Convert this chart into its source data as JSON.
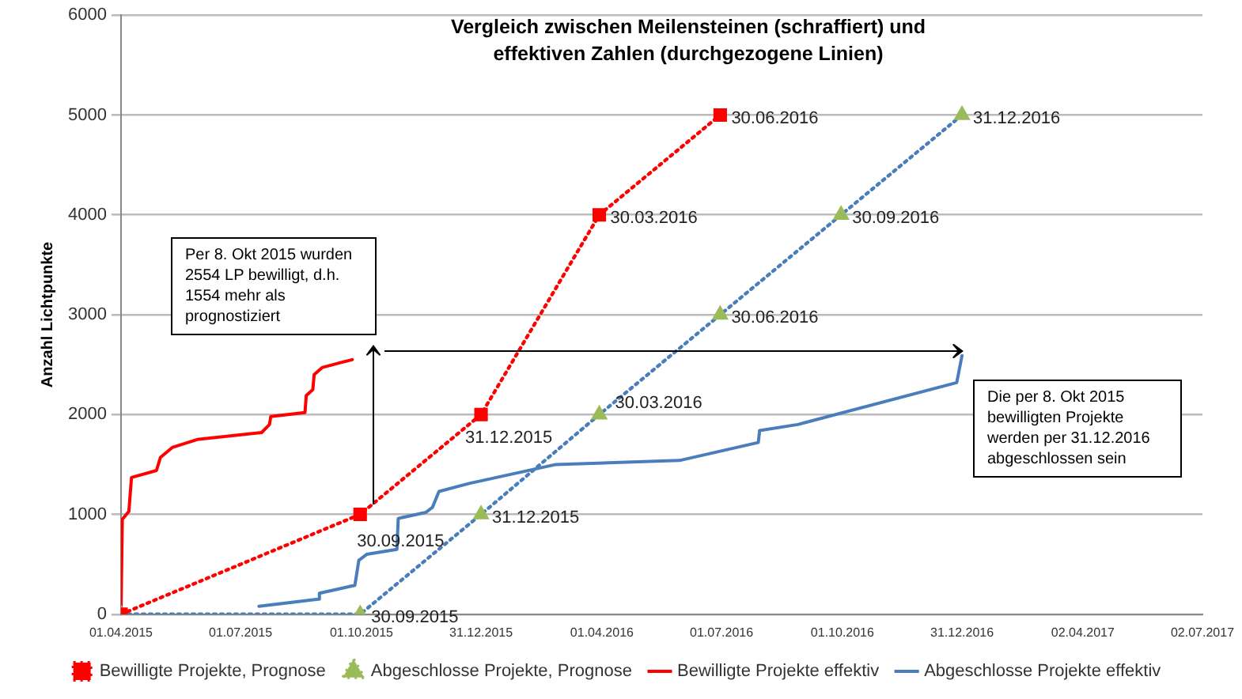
{
  "chart_data": {
    "type": "line",
    "title": "Vergleich zwischen Meilensteinen (schraffiert) und\neffektiven Zahlen (durchgezogene Linien)",
    "ylabel": "Anzahl Lichtpunkte",
    "xlim": [
      "2015-04-01",
      "2017-07-02"
    ],
    "xticks": [
      {
        "value": "2015-04-01",
        "label": "01.04.2015"
      },
      {
        "value": "2015-07-01",
        "label": "01.07.2015"
      },
      {
        "value": "2015-10-01",
        "label": "01.10.2015"
      },
      {
        "value": "2015-12-31",
        "label": "31.12.2015"
      },
      {
        "value": "2016-04-01",
        "label": "01.04.2016"
      },
      {
        "value": "2016-07-01",
        "label": "01.07.2016"
      },
      {
        "value": "2016-10-01",
        "label": "01.10.2016"
      },
      {
        "value": "2016-12-31",
        "label": "31.12.2016"
      },
      {
        "value": "2017-04-02",
        "label": "02.04.2017"
      },
      {
        "value": "2017-07-02",
        "label": "02.07.2017"
      }
    ],
    "ylim": [
      0,
      6000
    ],
    "yticks": [
      0,
      1000,
      2000,
      3000,
      4000,
      5000,
      6000
    ],
    "grid": "y",
    "legend": "bottom",
    "annotations": [
      "Per 8. Okt 2015 wurden 2554 LP bewilligt, d.h. 1554 mehr als prognostiziert",
      "Die per 8. Okt 2015 bewilligten Projekte werden per 31.12.2016 abgeschlossen sein"
    ],
    "series": [
      {
        "name": "Bewilligte Projekte, Prognose",
        "color": "#ff0000",
        "line_style": "dotted",
        "marker": "square",
        "x": [
          "2015-04-01",
          "2015-09-30",
          "2015-12-31",
          "2016-03-30",
          "2016-06-30"
        ],
        "values": [
          0,
          1000,
          2000,
          4000,
          5000
        ],
        "value_labels": [
          null,
          "30.09.2015",
          "31.12.2015",
          "30.03.2016",
          "30.06.2016"
        ]
      },
      {
        "name": "Abgeschlosse Projekte, Prognose",
        "color": "#4a7ebb",
        "colors": [
          "#9bbb59",
          "#9bbb59",
          "#9bbb59",
          "#9bbb59",
          "#9bbb59",
          "#9bbb59",
          "#9bbb59"
        ],
        "line_style": "dotted",
        "marker": "triangle",
        "x": [
          "2015-04-01",
          "2015-09-30",
          "2015-12-31",
          "2016-03-30",
          "2016-06-30",
          "2016-09-30",
          "2016-12-31"
        ],
        "values": [
          0,
          0,
          1000,
          2000,
          3000,
          4000,
          5000
        ],
        "value_labels": [
          null,
          "30.09.2015",
          "31.12.2015",
          "30.03.2016",
          "30.06.2016",
          "30.09.2016",
          "31.12.2016"
        ]
      },
      {
        "name": "Bewilligte Projekte effektiv",
        "color": "#ff0000",
        "line_style": "solid",
        "marker": "none",
        "x": [
          "2015-04-01",
          "2015-04-02",
          "2015-04-07",
          "2015-04-09",
          "2015-04-28",
          "2015-05-01",
          "2015-05-10",
          "2015-05-29",
          "2015-07-17",
          "2015-07-23",
          "2015-07-24",
          "2015-08-19",
          "2015-08-20",
          "2015-08-25",
          "2015-08-26",
          "2015-09-01",
          "2015-09-15",
          "2015-09-24"
        ],
        "values": [
          0,
          950,
          1030,
          1370,
          1440,
          1570,
          1670,
          1750,
          1820,
          1900,
          1980,
          2020,
          2190,
          2250,
          2400,
          2470,
          2520,
          2550
        ]
      },
      {
        "name": "Abgeschlosse Projekte effektiv",
        "color": "#4a7ebb",
        "line_style": "solid",
        "marker": "none",
        "x": [
          "2015-07-15",
          "2015-08-29",
          "2015-08-30",
          "2015-09-26",
          "2015-09-29",
          "2015-10-05",
          "2015-10-28",
          "2015-10-29",
          "2015-11-19",
          "2015-11-24",
          "2015-11-29",
          "2015-12-22",
          "2016-02-26",
          "2016-05-30",
          "2016-07-29",
          "2016-07-30",
          "2016-08-28",
          "2016-12-27",
          "2016-12-31"
        ],
        "values": [
          80,
          150,
          210,
          290,
          540,
          600,
          650,
          960,
          1020,
          1070,
          1230,
          1310,
          1500,
          1540,
          1720,
          1840,
          1900,
          2320,
          2590
        ]
      }
    ]
  }
}
